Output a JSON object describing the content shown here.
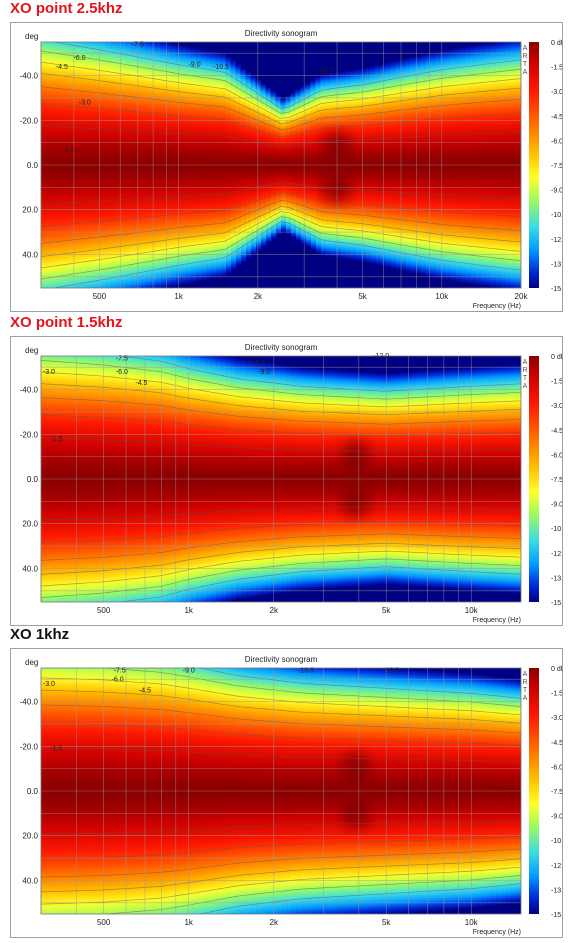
{
  "colors": {
    "heading_red": "#e3141b",
    "heading_black": "#111111"
  },
  "charts": [
    {
      "heading": "XO point 2.5khz",
      "heading_color": "red",
      "chart_data": {
        "type": "heatmap",
        "title": "Directivity sonogram",
        "ylabel": "deg",
        "xlabel": "Frequency (Hz)",
        "x_scale": "log",
        "xlim": [
          300,
          20000
        ],
        "ylim": [
          -55,
          55
        ],
        "x_ticks": [
          {
            "value": 500,
            "label": "500"
          },
          {
            "value": 1000,
            "label": "1k"
          },
          {
            "value": 2000,
            "label": "2k"
          },
          {
            "value": 5000,
            "label": "5k"
          },
          {
            "value": 10000,
            "label": "10k"
          },
          {
            "value": 20000,
            "label": "20k"
          }
        ],
        "y_ticks": [
          {
            "value": -40,
            "label": "-40.0"
          },
          {
            "value": -20,
            "label": "-20.0"
          },
          {
            "value": 0,
            "label": "0.0"
          },
          {
            "value": 20,
            "label": "20.0"
          },
          {
            "value": 40,
            "label": "40.0"
          }
        ],
        "colorbar": {
          "brand": [
            "A",
            "R",
            "T",
            "A"
          ],
          "range": [
            -15,
            0
          ],
          "labels": [
            "0 dB",
            "-1.5",
            "-3.0",
            "-4.5",
            "-6.0",
            "-7.5",
            "-9.0",
            "-10.5",
            "-12.0",
            "-13.5",
            "-15.0"
          ]
        },
        "contour_labels": [
          {
            "text": "-7.5",
            "f": 700,
            "deg": -53
          },
          {
            "text": "-6.0",
            "f": 420,
            "deg": -47
          },
          {
            "text": "-4.5",
            "f": 360,
            "deg": -43
          },
          {
            "text": "-9.0",
            "f": 1150,
            "deg": -44
          },
          {
            "text": "-10.5",
            "f": 1450,
            "deg": -43
          },
          {
            "text": "-12.0",
            "f": 3600,
            "deg": -41
          },
          {
            "text": "-3.0",
            "f": 440,
            "deg": -27
          },
          {
            "text": "-1.5",
            "f": 380,
            "deg": -6
          }
        ],
        "beamwidth_6db": [
          {
            "f": 300,
            "deg": 50
          },
          {
            "f": 500,
            "deg": 46
          },
          {
            "f": 800,
            "deg": 42
          },
          {
            "f": 1000,
            "deg": 40
          },
          {
            "f": 1500,
            "deg": 37
          },
          {
            "f": 2500,
            "deg": 22
          },
          {
            "f": 3500,
            "deg": 30
          },
          {
            "f": 5000,
            "deg": 32
          },
          {
            "f": 7000,
            "deg": 35
          },
          {
            "f": 10000,
            "deg": 38
          },
          {
            "f": 14000,
            "deg": 40
          },
          {
            "f": 20000,
            "deg": 42
          }
        ],
        "hot_spots": [
          {
            "f": 4000,
            "deg": -8
          },
          {
            "f": 4000,
            "deg": 10
          }
        ]
      }
    },
    {
      "heading": "XO point 1.5khz",
      "heading_color": "red",
      "chart_data": {
        "type": "heatmap",
        "title": "Directivity sonogram",
        "ylabel": "deg",
        "xlabel": "Frequency (Hz)",
        "x_scale": "log",
        "xlim": [
          300,
          15000
        ],
        "ylim": [
          -55,
          55
        ],
        "x_ticks": [
          {
            "value": 500,
            "label": "500"
          },
          {
            "value": 1000,
            "label": "1k"
          },
          {
            "value": 2000,
            "label": "2k"
          },
          {
            "value": 5000,
            "label": "5k"
          },
          {
            "value": 10000,
            "label": "10k"
          }
        ],
        "y_ticks": [
          {
            "value": -40,
            "label": "-40.0"
          },
          {
            "value": -20,
            "label": "-20.0"
          },
          {
            "value": 0,
            "label": "0.0"
          },
          {
            "value": 20,
            "label": "20.0"
          },
          {
            "value": 40,
            "label": "40.0"
          }
        ],
        "colorbar": {
          "brand": [
            "A",
            "R",
            "T",
            "A"
          ],
          "range": [
            -15,
            0
          ],
          "labels": [
            "0 dB",
            "-1.5",
            "-3.0",
            "-4.5",
            "-6.0",
            "-7.5",
            "-9.0",
            "-10.5",
            "-12.0",
            "-13.5",
            "-15.0"
          ]
        },
        "contour_labels": [
          {
            "text": "-7.5",
            "f": 580,
            "deg": -53
          },
          {
            "text": "-6.0",
            "f": 580,
            "deg": -47
          },
          {
            "text": "-4.5",
            "f": 680,
            "deg": -42
          },
          {
            "text": "-3.0",
            "f": 320,
            "deg": -47
          },
          {
            "text": "-10.5",
            "f": 1750,
            "deg": -51
          },
          {
            "text": "-9.0",
            "f": 1850,
            "deg": -47
          },
          {
            "text": "-12.0",
            "f": 4800,
            "deg": -54
          },
          {
            "text": "-1.5",
            "f": 340,
            "deg": -17
          }
        ],
        "beamwidth_6db": [
          {
            "f": 300,
            "deg": 52
          },
          {
            "f": 500,
            "deg": 50
          },
          {
            "f": 800,
            "deg": 47
          },
          {
            "f": 1000,
            "deg": 44
          },
          {
            "f": 1500,
            "deg": 40
          },
          {
            "f": 2500,
            "deg": 37
          },
          {
            "f": 3500,
            "deg": 36
          },
          {
            "f": 5000,
            "deg": 35
          },
          {
            "f": 7000,
            "deg": 36
          },
          {
            "f": 10000,
            "deg": 37
          },
          {
            "f": 15000,
            "deg": 38
          }
        ],
        "hot_spots": [
          {
            "f": 3900,
            "deg": -10
          },
          {
            "f": 3900,
            "deg": 10
          }
        ]
      }
    },
    {
      "heading": "XO 1khz",
      "heading_color": "black",
      "chart_data": {
        "type": "heatmap",
        "title": "Directivity sonogram",
        "ylabel": "deg",
        "xlabel": "Frequency (Hz)",
        "x_scale": "log",
        "xlim": [
          300,
          15000
        ],
        "ylim": [
          -55,
          55
        ],
        "x_ticks": [
          {
            "value": 500,
            "label": "500"
          },
          {
            "value": 1000,
            "label": "1k"
          },
          {
            "value": 2000,
            "label": "2k"
          },
          {
            "value": 5000,
            "label": "5k"
          },
          {
            "value": 10000,
            "label": "10k"
          }
        ],
        "y_ticks": [
          {
            "value": -40,
            "label": "-40.0"
          },
          {
            "value": -20,
            "label": "-20.0"
          },
          {
            "value": 0,
            "label": "0.0"
          },
          {
            "value": 20,
            "label": "20.0"
          },
          {
            "value": 40,
            "label": "40.0"
          }
        ],
        "colorbar": {
          "brand": [
            "A",
            "R",
            "T",
            "A"
          ],
          "range": [
            -15,
            0
          ],
          "labels": [
            "0 dB",
            "-1.5",
            "-3.0",
            "-4.5",
            "-6.0",
            "-7.5",
            "-9.0",
            "-10.5",
            "-12.0",
            "-13.5",
            "-15.0"
          ]
        },
        "contour_labels": [
          {
            "text": "-7.5",
            "f": 570,
            "deg": -53
          },
          {
            "text": "-6.0",
            "f": 560,
            "deg": -49
          },
          {
            "text": "-4.5",
            "f": 700,
            "deg": -44
          },
          {
            "text": "-9.0",
            "f": 1000,
            "deg": -53
          },
          {
            "text": "-3.0",
            "f": 320,
            "deg": -47
          },
          {
            "text": "-10.5",
            "f": 2600,
            "deg": -53
          },
          {
            "text": "-12.0",
            "f": 5200,
            "deg": -53
          },
          {
            "text": "-1.5",
            "f": 340,
            "deg": -18
          }
        ],
        "beamwidth_6db": [
          {
            "f": 300,
            "deg": 55
          },
          {
            "f": 500,
            "deg": 54
          },
          {
            "f": 800,
            "deg": 52
          },
          {
            "f": 1000,
            "deg": 50
          },
          {
            "f": 1500,
            "deg": 46
          },
          {
            "f": 2500,
            "deg": 43
          },
          {
            "f": 3500,
            "deg": 42
          },
          {
            "f": 5000,
            "deg": 41
          },
          {
            "f": 7000,
            "deg": 40
          },
          {
            "f": 10000,
            "deg": 39
          },
          {
            "f": 15000,
            "deg": 37
          }
        ],
        "hot_spots": [
          {
            "f": 3900,
            "deg": -10
          },
          {
            "f": 3900,
            "deg": 10
          }
        ]
      }
    }
  ]
}
